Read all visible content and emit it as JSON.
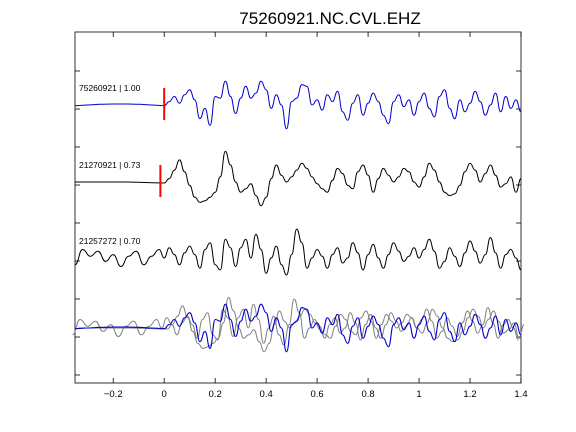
{
  "chart_data": {
    "type": "line",
    "title": "75260921.NC.CVL.EHZ",
    "xlabel": "",
    "ylabel": "",
    "xlim": [
      -0.35,
      1.4
    ],
    "xticks": [
      -0.2,
      0,
      0.2,
      0.4,
      0.6,
      0.8,
      1,
      1.2,
      1.4
    ],
    "xtick_labels": [
      "−0.2",
      "0",
      "0.2",
      "0.4",
      "0.6",
      "0.8",
      "1",
      "1.2",
      "1.4"
    ],
    "grid": false,
    "legend": "none",
    "colors": {
      "master": "#0000cc",
      "other": "#000000",
      "overlay_other": "#808080",
      "pick": "#ff0000"
    },
    "traces": [
      {
        "label": "75260921 | 1.00",
        "color": "#0000cc",
        "pick_time": 0.0,
        "x": [
          -0.35,
          -0.3,
          -0.25,
          -0.2,
          -0.15,
          -0.1,
          -0.05,
          0.0,
          0.02,
          0.04,
          0.06,
          0.08,
          0.1,
          0.12,
          0.14,
          0.16,
          0.18,
          0.2,
          0.22,
          0.24,
          0.26,
          0.28,
          0.3,
          0.32,
          0.34,
          0.36,
          0.38,
          0.4,
          0.42,
          0.44,
          0.46,
          0.48,
          0.5,
          0.52,
          0.54,
          0.56,
          0.58,
          0.6,
          0.62,
          0.64,
          0.66,
          0.68,
          0.7,
          0.72,
          0.74,
          0.76,
          0.78,
          0.8,
          0.82,
          0.84,
          0.86,
          0.88,
          0.9,
          0.92,
          0.94,
          0.96,
          0.98,
          1.0,
          1.02,
          1.04,
          1.06,
          1.08,
          1.1,
          1.12,
          1.14,
          1.16,
          1.18,
          1.2,
          1.22,
          1.24,
          1.26,
          1.28,
          1.3,
          1.32,
          1.34,
          1.36,
          1.38,
          1.4
        ],
        "y": [
          -0.02,
          0.0,
          0.02,
          0.03,
          0.03,
          0.02,
          0.0,
          -0.02,
          0.1,
          0.25,
          0.05,
          0.3,
          0.45,
          0.15,
          -0.4,
          -0.1,
          -0.6,
          0.25,
          0.2,
          0.7,
          0.25,
          -0.25,
          0.2,
          0.55,
          0.2,
          0.35,
          0.7,
          0.45,
          -0.1,
          0.3,
          0.0,
          -0.7,
          0.1,
          0.2,
          0.6,
          0.55,
          0.0,
          0.15,
          -0.15,
          0.3,
          0.1,
          0.4,
          -0.2,
          -0.45,
          0.05,
          0.3,
          -0.3,
          0.05,
          0.35,
          0.1,
          -0.3,
          -0.55,
          0.1,
          0.3,
          -0.05,
          0.15,
          -0.3,
          0.1,
          0.35,
          -0.1,
          -0.35,
          0.25,
          0.45,
          -0.1,
          -0.4,
          0.15,
          -0.2,
          0.05,
          0.4,
          0.1,
          -0.3,
          0.0,
          0.35,
          -0.2,
          0.25,
          -0.1,
          0.15,
          -0.2
        ]
      },
      {
        "label": "21270921 | 0.73",
        "color": "#000000",
        "pick_time": -0.015,
        "x": [
          -0.35,
          -0.3,
          -0.25,
          -0.2,
          -0.15,
          -0.1,
          -0.05,
          0.0,
          0.02,
          0.04,
          0.06,
          0.08,
          0.1,
          0.12,
          0.14,
          0.16,
          0.18,
          0.2,
          0.22,
          0.24,
          0.26,
          0.28,
          0.3,
          0.32,
          0.34,
          0.36,
          0.38,
          0.4,
          0.42,
          0.44,
          0.46,
          0.48,
          0.5,
          0.52,
          0.54,
          0.56,
          0.58,
          0.6,
          0.62,
          0.64,
          0.66,
          0.68,
          0.7,
          0.72,
          0.74,
          0.76,
          0.78,
          0.8,
          0.82,
          0.84,
          0.86,
          0.88,
          0.9,
          0.92,
          0.94,
          0.96,
          0.98,
          1.0,
          1.02,
          1.04,
          1.06,
          1.08,
          1.1,
          1.12,
          1.14,
          1.16,
          1.18,
          1.2,
          1.22,
          1.24,
          1.26,
          1.28,
          1.3,
          1.32,
          1.34,
          1.36,
          1.38,
          1.4
        ],
        "y": [
          0.0,
          0.0,
          0.0,
          0.0,
          0.0,
          -0.01,
          -0.02,
          -0.03,
          0.1,
          0.35,
          0.65,
          0.3,
          -0.1,
          -0.45,
          -0.6,
          -0.55,
          -0.45,
          -0.3,
          0.15,
          0.9,
          0.5,
          0.0,
          -0.3,
          -0.2,
          -0.05,
          -0.4,
          -0.7,
          -0.45,
          0.1,
          0.5,
          0.2,
          0.0,
          0.15,
          0.35,
          0.55,
          0.4,
          0.15,
          -0.05,
          -0.2,
          -0.3,
          0.05,
          0.4,
          0.25,
          -0.1,
          -0.2,
          0.3,
          0.5,
          0.2,
          -0.3,
          0.1,
          0.4,
          0.2,
          0.0,
          0.15,
          0.4,
          0.3,
          0.0,
          -0.15,
          0.15,
          0.55,
          0.35,
          0.0,
          -0.3,
          -0.4,
          -0.35,
          -0.1,
          0.3,
          0.55,
          0.35,
          0.0,
          0.25,
          0.5,
          0.2,
          -0.15,
          -0.05,
          0.15,
          -0.3,
          0.1
        ]
      },
      {
        "label": "21257272 | 0.70",
        "color": "#000000",
        "pick_time": null,
        "x": [
          -0.35,
          -0.32,
          -0.29,
          -0.26,
          -0.23,
          -0.2,
          -0.17,
          -0.14,
          -0.11,
          -0.08,
          -0.05,
          -0.02,
          0.0,
          0.02,
          0.04,
          0.06,
          0.08,
          0.1,
          0.12,
          0.14,
          0.16,
          0.18,
          0.2,
          0.22,
          0.24,
          0.26,
          0.28,
          0.3,
          0.32,
          0.34,
          0.36,
          0.38,
          0.4,
          0.42,
          0.44,
          0.46,
          0.48,
          0.5,
          0.52,
          0.54,
          0.56,
          0.58,
          0.6,
          0.62,
          0.64,
          0.66,
          0.68,
          0.7,
          0.72,
          0.74,
          0.76,
          0.78,
          0.8,
          0.82,
          0.84,
          0.86,
          0.88,
          0.9,
          0.92,
          0.94,
          0.96,
          0.98,
          1.0,
          1.02,
          1.04,
          1.06,
          1.08,
          1.1,
          1.12,
          1.14,
          1.16,
          1.18,
          1.2,
          1.22,
          1.24,
          1.26,
          1.28,
          1.3,
          1.32,
          1.34,
          1.36,
          1.38,
          1.4
        ],
        "y": [
          -0.2,
          0.25,
          0.05,
          0.2,
          -0.1,
          0.1,
          -0.25,
          0.05,
          0.2,
          -0.2,
          0.05,
          0.25,
          0.0,
          0.3,
          0.1,
          -0.2,
          0.15,
          0.35,
          0.1,
          -0.3,
          0.25,
          0.45,
          -0.2,
          -0.35,
          0.55,
          0.3,
          -0.25,
          0.3,
          0.55,
          0.0,
          0.7,
          0.25,
          -0.45,
          0.0,
          0.35,
          -0.2,
          -0.5,
          0.1,
          0.85,
          0.45,
          -0.3,
          0.0,
          0.25,
          0.05,
          -0.3,
          0.1,
          0.3,
          -0.15,
          0.0,
          0.45,
          0.15,
          -0.35,
          0.1,
          0.4,
          0.0,
          -0.3,
          0.1,
          0.45,
          0.2,
          -0.1,
          0.05,
          0.3,
          0.0,
          0.25,
          0.55,
          0.2,
          -0.3,
          -0.1,
          0.3,
          0.05,
          -0.25,
          0.15,
          0.5,
          0.2,
          -0.15,
          0.1,
          0.6,
          0.15,
          -0.3,
          0.1,
          0.25,
          0.0,
          -0.35
        ]
      }
    ],
    "overlay": {
      "description_visible": false
    }
  }
}
